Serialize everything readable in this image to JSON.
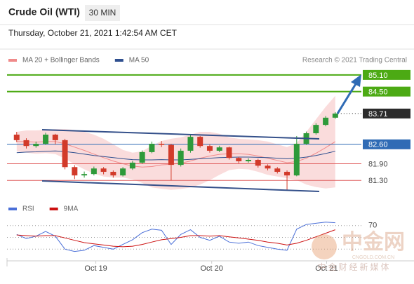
{
  "header": {
    "title": "Crude Oil (WTI)",
    "timeframe": "30 MIN",
    "datetime": "Thursday, October 21, 2021 1:42:54 AM CET"
  },
  "chart_data": [
    {
      "type": "candlestick",
      "source": "Research © 2021 Trading Central",
      "up_color": "#2e9a3a",
      "down_color": "#d23a2a",
      "x": [
        1,
        2,
        3,
        4,
        5,
        6,
        7,
        8,
        9,
        10,
        11,
        12,
        13,
        14,
        15,
        16,
        17,
        18,
        19,
        20,
        21,
        22,
        23,
        24,
        25,
        26,
        27,
        28,
        29,
        30,
        31,
        32,
        33,
        34
      ],
      "open": [
        82.95,
        82.75,
        82.54,
        82.62,
        82.95,
        82.75,
        81.78,
        81.48,
        81.53,
        81.73,
        81.61,
        81.48,
        81.73,
        81.94,
        82.32,
        82.62,
        82.58,
        81.86,
        82.37,
        82.87,
        82.54,
        82.37,
        82.49,
        82.11,
        81.99,
        82.04,
        81.83,
        81.73,
        81.61,
        81.48,
        82.62,
        83.0,
        83.3,
        83.56
      ],
      "high": [
        83.05,
        82.82,
        82.7,
        83.02,
        82.98,
        82.8,
        81.85,
        81.62,
        81.8,
        81.78,
        81.66,
        81.78,
        82.0,
        82.38,
        82.7,
        82.72,
        82.62,
        82.45,
        82.95,
        82.9,
        82.6,
        82.55,
        82.52,
        82.15,
        82.1,
        82.08,
        81.88,
        81.78,
        81.66,
        82.9,
        83.06,
        83.36,
        83.62,
        83.76
      ],
      "low": [
        82.68,
        82.45,
        82.48,
        82.58,
        82.6,
        81.7,
        81.35,
        81.4,
        81.48,
        81.52,
        81.4,
        81.44,
        81.68,
        81.9,
        82.28,
        82.5,
        81.3,
        81.8,
        82.3,
        82.48,
        82.3,
        82.32,
        82.05,
        81.92,
        81.94,
        81.76,
        81.66,
        81.55,
        80.95,
        81.45,
        82.58,
        82.95,
        83.25,
        83.52
      ],
      "close": [
        82.75,
        82.54,
        82.62,
        82.95,
        82.75,
        81.78,
        81.48,
        81.53,
        81.73,
        81.61,
        81.48,
        81.73,
        81.94,
        82.32,
        82.62,
        82.58,
        81.86,
        82.37,
        82.87,
        82.54,
        82.37,
        82.49,
        82.11,
        81.99,
        82.04,
        81.83,
        81.73,
        81.61,
        81.48,
        82.62,
        83.0,
        83.3,
        83.56,
        83.71
      ],
      "overlays": [
        {
          "name": "MA 20 + Bollinger Bands",
          "color": "#f08a8a",
          "band_color": "#f9d3d3",
          "values": [
            82.7,
            82.7,
            82.68,
            82.7,
            82.7,
            82.62,
            82.5,
            82.38,
            82.25,
            82.12,
            82.0,
            81.9,
            81.82,
            81.78,
            81.8,
            81.86,
            81.88,
            81.92,
            82.0,
            82.1,
            82.18,
            82.24,
            82.26,
            82.26,
            82.24,
            82.18,
            82.1,
            82.02,
            81.94,
            81.98,
            82.1,
            82.28,
            82.48,
            82.7
          ],
          "upper": [
            83.05,
            83.1,
            83.1,
            83.12,
            83.15,
            83.15,
            83.12,
            83.05,
            82.95,
            82.8,
            82.6,
            82.4,
            82.3,
            82.35,
            82.55,
            82.72,
            82.8,
            82.85,
            82.95,
            83.05,
            83.05,
            82.98,
            82.85,
            82.8,
            82.78,
            82.75,
            82.7,
            82.6,
            82.5,
            82.65,
            83.05,
            83.5,
            83.95,
            84.35
          ],
          "lower": [
            82.35,
            82.3,
            82.26,
            82.28,
            82.25,
            82.09,
            81.88,
            81.7,
            81.55,
            81.44,
            81.4,
            81.4,
            81.34,
            81.21,
            81.05,
            81.0,
            80.96,
            80.99,
            81.05,
            81.15,
            81.31,
            81.5,
            81.67,
            81.72,
            81.7,
            81.61,
            81.5,
            81.44,
            81.38,
            81.31,
            81.15,
            81.06,
            81.01,
            81.05
          ]
        },
        {
          "name": "MA 50",
          "color": "#2f4f8f",
          "values": [
            82.3,
            82.32,
            82.33,
            82.35,
            82.36,
            82.34,
            82.3,
            82.25,
            82.2,
            82.16,
            82.12,
            82.08,
            82.05,
            82.04,
            82.04,
            82.05,
            82.04,
            82.04,
            82.06,
            82.08,
            82.1,
            82.12,
            82.13,
            82.14,
            82.14,
            82.13,
            82.12,
            82.1,
            82.08,
            82.1,
            82.14,
            82.2,
            82.27,
            82.35
          ]
        }
      ],
      "levels": [
        {
          "value": 85.1,
          "label": "85.10",
          "color": "#4caa14",
          "line": "solid",
          "boxed": true
        },
        {
          "value": 84.5,
          "label": "84.50",
          "color": "#4caa14",
          "line": "solid",
          "boxed": true
        },
        {
          "value": 83.71,
          "label": "83.71",
          "color": "#2b2b2b",
          "line": "dotted",
          "boxed": true
        },
        {
          "value": 82.6,
          "label": "82.60",
          "color": "#2f6bb5",
          "line": "solid",
          "boxed": true
        },
        {
          "value": 81.9,
          "label": "81.90",
          "color": "#e06060",
          "line": "solid",
          "boxed": false
        },
        {
          "value": 81.3,
          "label": "81.30",
          "color": "#e06060",
          "line": "solid",
          "boxed": false
        }
      ],
      "xlim": [
        0,
        36.7
      ],
      "ylim": [
        80.6,
        85.4
      ]
    },
    {
      "type": "line",
      "series": [
        {
          "name": "RSI",
          "color": "#4a6fd8",
          "values": [
            55,
            48,
            52,
            60,
            52,
            30,
            26,
            28,
            36,
            33,
            30,
            38,
            46,
            58,
            64,
            62,
            38,
            55,
            63,
            50,
            45,
            52,
            42,
            40,
            42,
            36,
            33,
            30,
            28,
            64,
            72,
            74,
            76,
            75
          ]
        },
        {
          "name": "9MA",
          "color": "#cc1010",
          "values": [
            54,
            53,
            52,
            53,
            53,
            49,
            45,
            41,
            39,
            37,
            35,
            34,
            35,
            38,
            42,
            46,
            48,
            50,
            53,
            53,
            52,
            53,
            51,
            49,
            47,
            45,
            42,
            40,
            37,
            40,
            45,
            51,
            57,
            63
          ]
        }
      ],
      "x": [
        1,
        2,
        3,
        4,
        5,
        6,
        7,
        8,
        9,
        10,
        11,
        12,
        13,
        14,
        15,
        16,
        17,
        18,
        19,
        20,
        21,
        22,
        23,
        24,
        25,
        26,
        27,
        28,
        29,
        30,
        31,
        32,
        33,
        34
      ],
      "xlim": [
        0,
        36.7
      ],
      "ylim": [
        10,
        90
      ],
      "yticks": [
        70
      ],
      "guides": [
        30,
        50
      ],
      "xticks": [
        {
          "value": 9.2,
          "label": "Oct 19"
        },
        {
          "value": 21.2,
          "label": "Oct 20"
        },
        {
          "value": 33.1,
          "label": "Oct 21"
        }
      ]
    }
  ],
  "watermark": {
    "name": "中金网",
    "domain": "CNGOLD.COM.CN",
    "tagline": "中金财经新媒体"
  }
}
